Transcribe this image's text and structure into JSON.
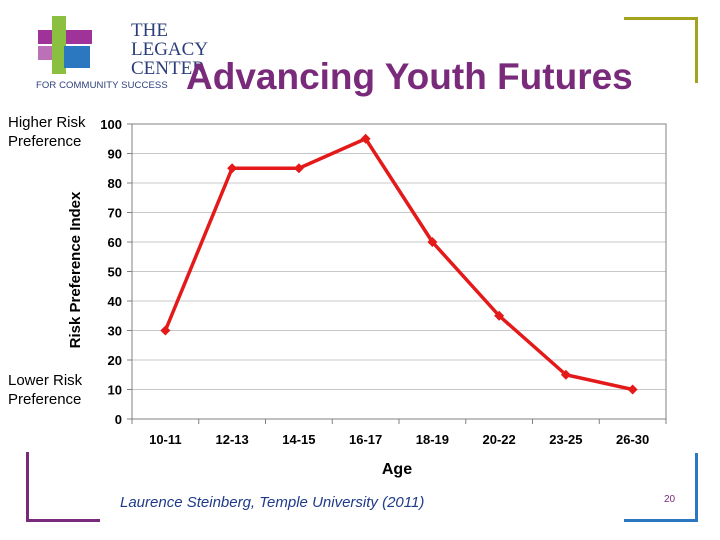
{
  "logo": {
    "line1": "THE",
    "line2": "LEGACY",
    "line3": "CENTER",
    "tagline": "FOR COMMUNITY SUCCESS",
    "colors": {
      "green": "#8bbf3f",
      "blue": "#2c78c0",
      "magenta": "#a0339a",
      "navy": "#2c3e7a"
    }
  },
  "slide": {
    "title": "Advancing Youth Futures",
    "higher_label": "Higher Risk Preference",
    "lower_label": "Lower Risk Preference",
    "credit": "Laurence Steinberg, Temple University (2011)",
    "page_number": "20",
    "accent_title": "#7a2a7a",
    "line_color": "#e41a1a"
  },
  "chart_data": {
    "type": "line",
    "title": "",
    "xlabel": "Age",
    "ylabel": "Risk Preference Index",
    "categories": [
      "10-11",
      "12-13",
      "14-15",
      "16-17",
      "18-19",
      "20-22",
      "23-25",
      "26-30"
    ],
    "series": [
      {
        "name": "Risk Preference Index",
        "values": [
          30,
          85,
          85,
          95,
          60,
          35,
          15,
          10
        ]
      }
    ],
    "ylim": [
      0,
      100
    ],
    "yticks": [
      0,
      10,
      20,
      30,
      40,
      50,
      60,
      70,
      80,
      90,
      100
    ],
    "grid": true,
    "legend": "none"
  }
}
